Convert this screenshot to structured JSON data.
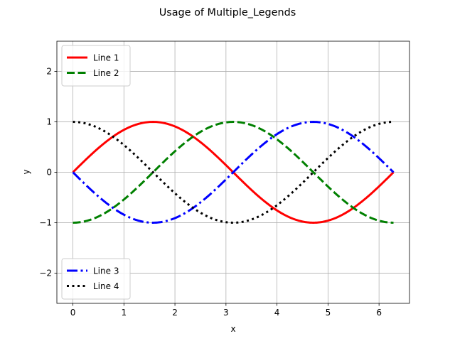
{
  "chart_data": {
    "type": "line",
    "title": "Usage of Multiple_Legends",
    "xlabel": "x",
    "ylabel": "y",
    "xlim": [
      -0.314,
      6.597
    ],
    "ylim": [
      -2.6,
      2.6
    ],
    "xticks": [
      0,
      1,
      2,
      3,
      4,
      5,
      6
    ],
    "yticks": [
      -2,
      -1,
      0,
      1,
      2
    ],
    "xtick_labels": [
      "0",
      "1",
      "2",
      "3",
      "4",
      "5",
      "6"
    ],
    "ytick_labels": [
      "−2",
      "−1",
      "0",
      "1",
      "2"
    ],
    "grid": true,
    "x": [
      0.0,
      0.3307,
      0.6614,
      0.9921,
      1.3228,
      1.6535,
      1.9842,
      2.3149,
      2.6456,
      2.9762,
      3.3069,
      3.6376,
      3.9683,
      4.299,
      4.6297,
      4.9604,
      5.2911,
      5.6218,
      5.9525,
      6.2832
    ],
    "series": [
      {
        "name": "Line 1",
        "color": "#ff0000",
        "style": "solid",
        "values": [
          0.0,
          0.3247,
          0.6142,
          0.8372,
          0.9694,
          0.9966,
          0.9158,
          0.7357,
          0.4759,
          0.1646,
          -0.1646,
          -0.4759,
          -0.7357,
          -0.9158,
          -0.9966,
          -0.9694,
          -0.8372,
          -0.6142,
          -0.3247,
          0.0
        ]
      },
      {
        "name": "Line 2",
        "color": "#008000",
        "style": "dashed",
        "values": [
          -1.0,
          -0.9458,
          -0.7891,
          -0.5469,
          -0.2455,
          0.0826,
          0.4017,
          0.6773,
          0.8795,
          0.9864,
          0.9864,
          0.8795,
          0.6773,
          0.4017,
          0.0826,
          -0.2455,
          -0.5469,
          -0.7891,
          -0.9458,
          -1.0
        ]
      },
      {
        "name": "Line 3",
        "color": "#0000ff",
        "style": "dashdot",
        "values": [
          0.0,
          -0.3247,
          -0.6142,
          -0.8372,
          -0.9694,
          -0.9966,
          -0.9158,
          -0.7357,
          -0.4759,
          -0.1646,
          0.1646,
          0.4759,
          0.7357,
          0.9158,
          0.9966,
          0.9694,
          0.8372,
          0.6142,
          0.3247,
          0.0
        ]
      },
      {
        "name": "Line 4",
        "color": "#000000",
        "style": "dotted",
        "values": [
          1.0,
          0.9458,
          0.7891,
          0.5469,
          0.2455,
          -0.0826,
          -0.4017,
          -0.6773,
          -0.8795,
          -0.9864,
          -0.9864,
          -0.8795,
          -0.6773,
          -0.4017,
          -0.0826,
          0.2455,
          0.5469,
          0.7891,
          0.9458,
          1.0
        ]
      }
    ],
    "legends": [
      {
        "placement": "upper-left",
        "entries": [
          "Line 1",
          "Line 2"
        ]
      },
      {
        "placement": "lower-left",
        "entries": [
          "Line 3",
          "Line 4"
        ]
      }
    ]
  }
}
